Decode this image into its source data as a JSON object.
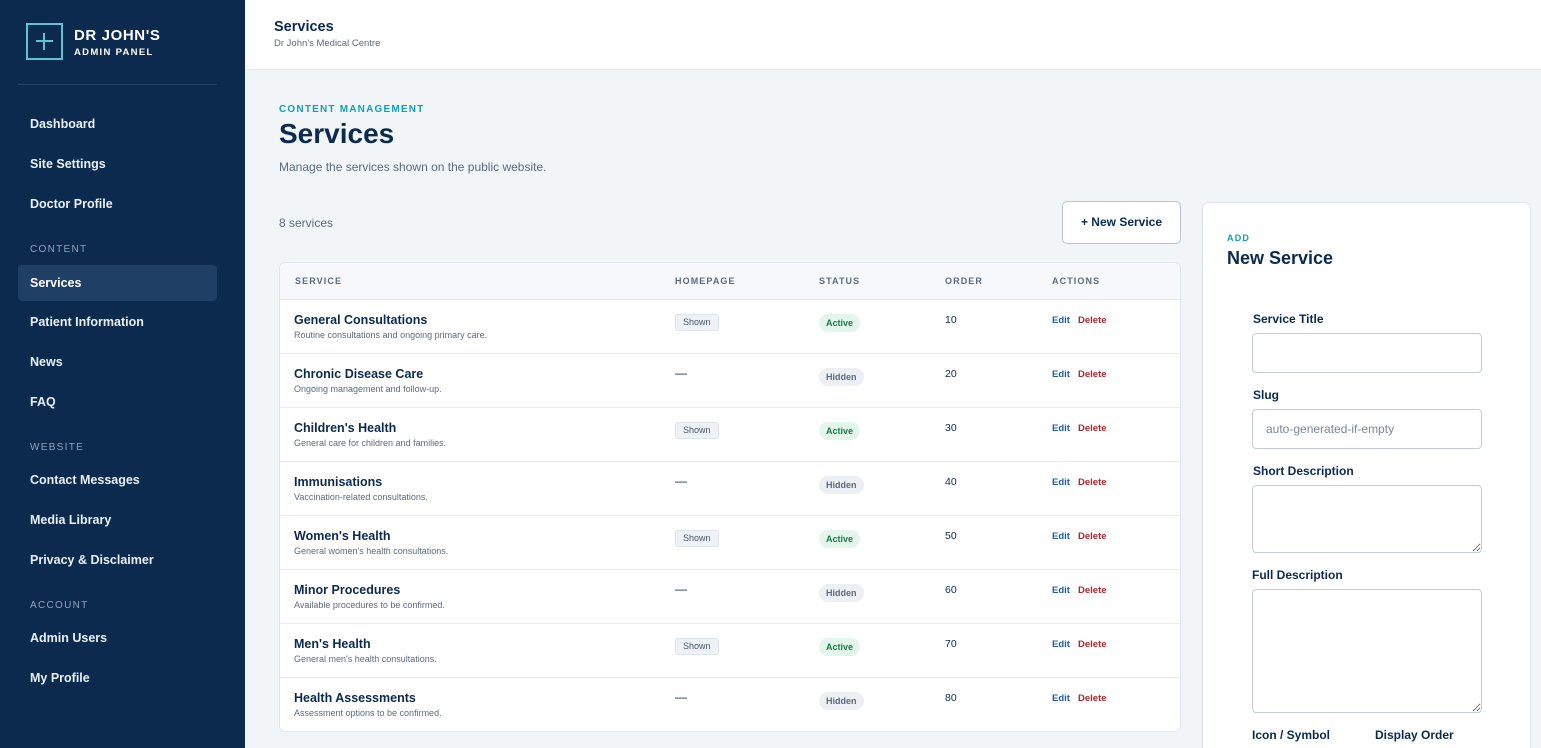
{
  "brand": {
    "title": "DR JOHN'S",
    "subtitle": "ADMIN PANEL",
    "logo_icon": "plus-icon"
  },
  "sidebar": {
    "items": [
      {
        "label": "Dashboard"
      },
      {
        "label": "Site Settings"
      },
      {
        "label": "Doctor Profile"
      },
      {
        "label": "Services",
        "active": true
      },
      {
        "label": "Patient Information"
      },
      {
        "label": "News"
      },
      {
        "label": "FAQ"
      },
      {
        "label": "Contact Messages"
      },
      {
        "label": "Media Library"
      },
      {
        "label": "Privacy & Disclaimer"
      },
      {
        "label": "Admin Users"
      },
      {
        "label": "My Profile"
      }
    ],
    "sections": {
      "content": "CONTENT",
      "website": "WEBSITE",
      "account": "ACCOUNT"
    }
  },
  "topbar": {
    "title": "Services",
    "subtitle": "Dr John's Medical Centre"
  },
  "page": {
    "eyebrow": "CONTENT MANAGEMENT",
    "title": "Services",
    "description": "Manage the services shown on the public website.",
    "count": "8 services",
    "new_button": "+ New Service"
  },
  "table": {
    "columns": [
      "SERVICE",
      "HOMEPAGE",
      "STATUS",
      "ORDER",
      "ACTIONS"
    ],
    "edit_label": "Edit",
    "delete_label": "Delete",
    "rows": [
      {
        "name": "General Consultations",
        "desc": "Routine consultations and ongoing primary care.",
        "homepage": "Shown",
        "status": "Active",
        "order": "10"
      },
      {
        "name": "Chronic Disease Care",
        "desc": "Ongoing management and follow-up.",
        "homepage": "—",
        "status": "Hidden",
        "order": "20"
      },
      {
        "name": "Children's Health",
        "desc": "General care for children and families.",
        "homepage": "Shown",
        "status": "Active",
        "order": "30"
      },
      {
        "name": "Immunisations",
        "desc": "Vaccination-related consultations.",
        "homepage": "—",
        "status": "Hidden",
        "order": "40"
      },
      {
        "name": "Women's Health",
        "desc": "General women's health consultations.",
        "homepage": "Shown",
        "status": "Active",
        "order": "50"
      },
      {
        "name": "Minor Procedures",
        "desc": "Available procedures to be confirmed.",
        "homepage": "—",
        "status": "Hidden",
        "order": "60"
      },
      {
        "name": "Men's Health",
        "desc": "General men's health consultations.",
        "homepage": "Shown",
        "status": "Active",
        "order": "70"
      },
      {
        "name": "Health Assessments",
        "desc": "Assessment options to be confirmed.",
        "homepage": "—",
        "status": "Hidden",
        "order": "80"
      }
    ]
  },
  "form": {
    "eyebrow": "ADD",
    "title": "New Service",
    "service_title_label": "Service Title",
    "service_title_value": "",
    "slug_label": "Slug",
    "slug_placeholder": "auto-generated-if-empty",
    "short_desc_label": "Short Description",
    "full_desc_label": "Full Description",
    "icon_label": "Icon / Symbol",
    "order_label": "Display Order"
  }
}
